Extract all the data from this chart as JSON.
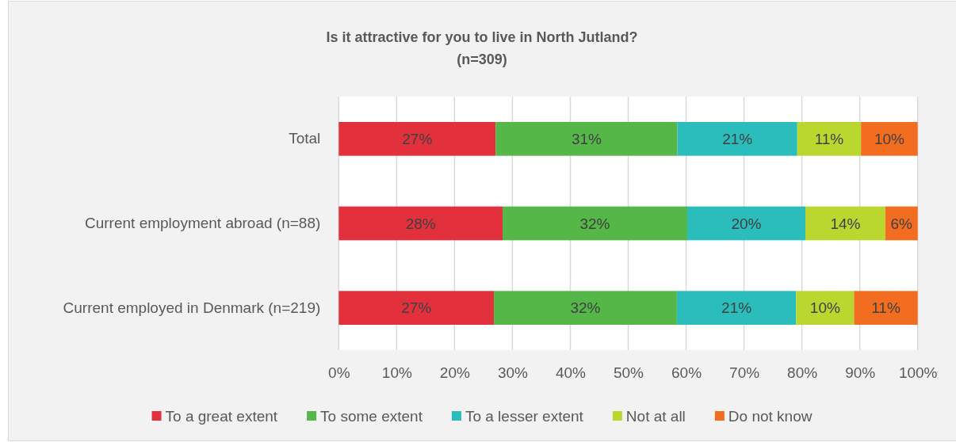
{
  "chart_data": {
    "type": "bar",
    "orientation": "horizontal",
    "stacked": true,
    "title": "Is it attractive for you to live in North Jutland?",
    "subtitle": "(n=309)",
    "categories": [
      "Total",
      "Current employment abroad (n=88)",
      "Current employed in Denmark (n=219)"
    ],
    "series": [
      {
        "name": "To a great extent",
        "color": "#e3303d",
        "values": [
          27.1,
          28.3,
          26.8
        ],
        "value_labels": [
          "27%",
          "28%",
          "27%"
        ]
      },
      {
        "name": "To some extent",
        "color": "#55b748",
        "values": [
          31.4,
          31.9,
          31.6
        ],
        "value_labels": [
          "31%",
          "32%",
          "32%"
        ]
      },
      {
        "name": "To a lesser extent",
        "color": "#2bbcbc",
        "values": [
          20.7,
          20.4,
          20.6
        ],
        "value_labels": [
          "21%",
          "20%",
          "21%"
        ]
      },
      {
        "name": "Not at all",
        "color": "#bad72f",
        "values": [
          11.0,
          13.8,
          10.0
        ],
        "value_labels": [
          "11%",
          "14%",
          "10%"
        ]
      },
      {
        "name": "Do not know",
        "color": "#f36d21",
        "values": [
          9.8,
          5.6,
          11.0
        ],
        "value_labels": [
          "10%",
          "6%",
          "11%"
        ]
      }
    ],
    "xlim": [
      0,
      100
    ],
    "xticks": [
      {
        "value": 0,
        "label": "0%"
      },
      {
        "value": 10,
        "label": "10%"
      },
      {
        "value": 20,
        "label": "20%"
      },
      {
        "value": 30,
        "label": "30%"
      },
      {
        "value": 40,
        "label": "40%"
      },
      {
        "value": 50,
        "label": "50%"
      },
      {
        "value": 60,
        "label": "60%"
      },
      {
        "value": 70,
        "label": "70%"
      },
      {
        "value": 80,
        "label": "80%"
      },
      {
        "value": 90,
        "label": "90%"
      },
      {
        "value": 100,
        "label": "100%"
      }
    ],
    "grid": "x",
    "legend": "bottom"
  }
}
